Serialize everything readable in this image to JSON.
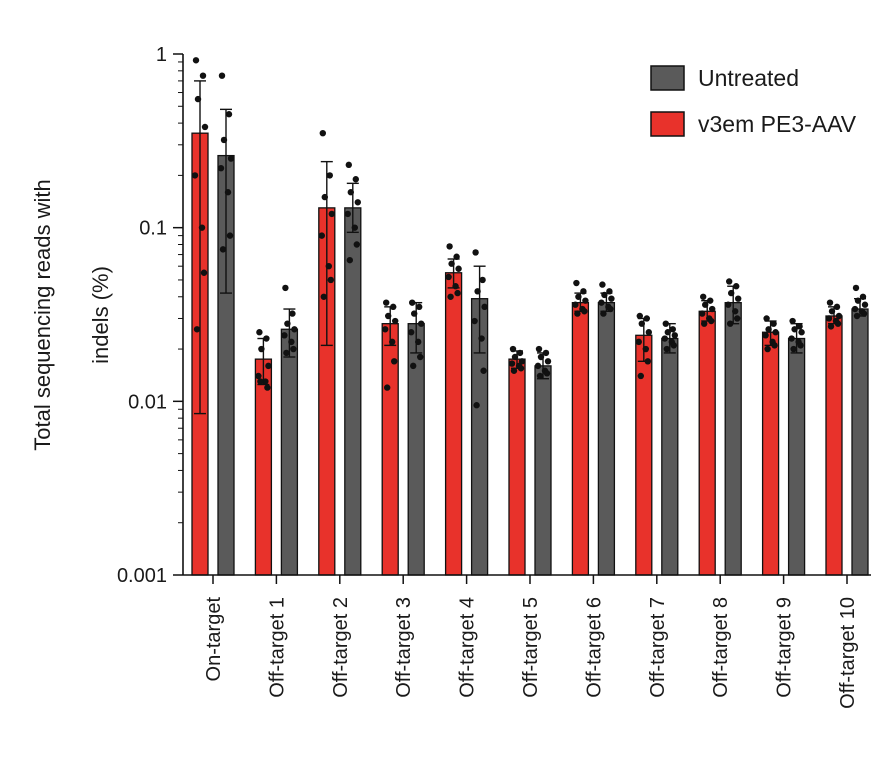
{
  "chart_data": {
    "type": "bar",
    "title": "",
    "ylabel": "Total sequencing reads with indels (%)",
    "ylabel_lines": [
      "Total sequencing reads with",
      "indels (%)"
    ],
    "yscale": "log",
    "ylim": [
      0.001,
      1
    ],
    "yticks": [
      {
        "value": 0.001,
        "label": "0.001"
      },
      {
        "value": 0.01,
        "label": "0.01"
      },
      {
        "value": 0.1,
        "label": "0.1"
      },
      {
        "value": 1,
        "label": "1"
      }
    ],
    "categories": [
      "On-target",
      "Off-target 1",
      "Off-target 2",
      "Off-target 3",
      "Off-target 4",
      "Off-target 5",
      "Off-target 6",
      "Off-target 7",
      "Off-target 8",
      "Off-target 9",
      "Off-target 10"
    ],
    "legend_position": "top-right",
    "series": [
      {
        "name": "v3em PE3-AAV",
        "color": "#e8322b",
        "values": [
          0.35,
          0.0175,
          0.13,
          0.028,
          0.055,
          0.0175,
          0.037,
          0.024,
          0.033,
          0.025,
          0.031
        ],
        "err_low": [
          0.0085,
          0.0125,
          0.021,
          0.021,
          0.045,
          0.0155,
          0.033,
          0.017,
          0.029,
          0.021,
          0.028
        ],
        "err_high": [
          0.7,
          0.023,
          0.24,
          0.035,
          0.066,
          0.0195,
          0.042,
          0.03,
          0.038,
          0.029,
          0.035
        ],
        "points": [
          [
            0.92,
            0.75,
            0.55,
            0.38,
            0.2,
            0.1,
            0.055,
            0.026
          ],
          [
            0.025,
            0.023,
            0.02,
            0.016,
            0.014,
            0.013,
            0.012,
            0.013
          ],
          [
            0.35,
            0.2,
            0.15,
            0.12,
            0.09,
            0.06,
            0.05,
            0.04
          ],
          [
            0.037,
            0.035,
            0.031,
            0.029,
            0.026,
            0.022,
            0.017,
            0.012
          ],
          [
            0.078,
            0.068,
            0.062,
            0.058,
            0.052,
            0.046,
            0.042,
            0.04
          ],
          [
            0.02,
            0.019,
            0.018,
            0.017,
            0.0165,
            0.016,
            0.0155,
            0.015
          ],
          [
            0.048,
            0.043,
            0.04,
            0.038,
            0.036,
            0.034,
            0.033,
            0.032
          ],
          [
            0.031,
            0.03,
            0.028,
            0.025,
            0.022,
            0.02,
            0.017,
            0.014
          ],
          [
            0.04,
            0.038,
            0.036,
            0.034,
            0.032,
            0.03,
            0.029,
            0.028
          ],
          [
            0.03,
            0.028,
            0.026,
            0.025,
            0.024,
            0.022,
            0.021,
            0.02
          ],
          [
            0.037,
            0.035,
            0.033,
            0.031,
            0.03,
            0.029,
            0.028,
            0.027
          ]
        ]
      },
      {
        "name": "Untreated",
        "color": "#5a5a5a",
        "values": [
          0.26,
          0.026,
          0.13,
          0.028,
          0.039,
          0.016,
          0.037,
          0.023,
          0.037,
          0.023,
          0.034
        ],
        "err_low": [
          0.042,
          0.018,
          0.094,
          0.019,
          0.019,
          0.0135,
          0.033,
          0.019,
          0.028,
          0.019,
          0.031
        ],
        "err_high": [
          0.48,
          0.034,
          0.18,
          0.037,
          0.06,
          0.019,
          0.042,
          0.028,
          0.046,
          0.028,
          0.039
        ],
        "points": [
          [
            0.75,
            0.45,
            0.32,
            0.25,
            0.22,
            0.16,
            0.09,
            0.075
          ],
          [
            0.045,
            0.032,
            0.028,
            0.026,
            0.024,
            0.022,
            0.02,
            0.019
          ],
          [
            0.23,
            0.19,
            0.16,
            0.14,
            0.12,
            0.1,
            0.08,
            0.065
          ],
          [
            0.037,
            0.035,
            0.032,
            0.028,
            0.025,
            0.022,
            0.018,
            0.016
          ],
          [
            0.072,
            0.05,
            0.043,
            0.035,
            0.029,
            0.023,
            0.015,
            0.0095
          ],
          [
            0.02,
            0.019,
            0.018,
            0.017,
            0.016,
            0.015,
            0.0145,
            0.014
          ],
          [
            0.047,
            0.043,
            0.041,
            0.039,
            0.037,
            0.035,
            0.034,
            0.032
          ],
          [
            0.028,
            0.026,
            0.025,
            0.024,
            0.023,
            0.022,
            0.021,
            0.02
          ],
          [
            0.049,
            0.046,
            0.042,
            0.039,
            0.036,
            0.033,
            0.03,
            0.028
          ],
          [
            0.029,
            0.027,
            0.026,
            0.025,
            0.023,
            0.022,
            0.021,
            0.02
          ],
          [
            0.045,
            0.04,
            0.038,
            0.036,
            0.034,
            0.033,
            0.032,
            0.031
          ]
        ]
      }
    ]
  }
}
